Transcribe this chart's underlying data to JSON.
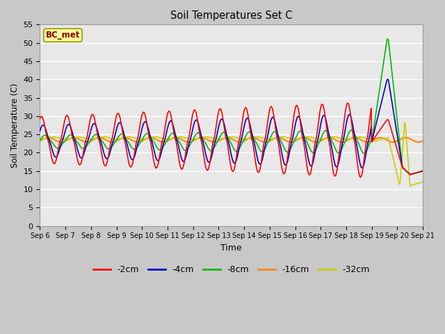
{
  "title": "Soil Temperatures Set C",
  "xlabel": "Time",
  "ylabel": "Soil Temperature (C)",
  "ylim": [
    0,
    55
  ],
  "yticks": [
    0,
    5,
    10,
    15,
    20,
    25,
    30,
    35,
    40,
    45,
    50,
    55
  ],
  "x_labels": [
    "Sep 6",
    "Sep 7",
    "Sep 8",
    "Sep 9",
    "Sep 10",
    "Sep 11",
    "Sep 12",
    "Sep 13",
    "Sep 14",
    "Sep 15",
    "Sep 16",
    "Sep 17",
    "Sep 18",
    "Sep 19",
    "Sep 20",
    "Sep 21"
  ],
  "colors": {
    "-2cm": "#ff0000",
    "-4cm": "#0000cc",
    "-8cm": "#00bb00",
    "-16cm": "#ff8800",
    "-32cm": "#cccc00"
  },
  "legend_label": "BC_met",
  "legend_bg": "#ffff99",
  "legend_border": "#999900",
  "fig_bg": "#c8c8c8",
  "plot_bg": "#e8e8e8"
}
